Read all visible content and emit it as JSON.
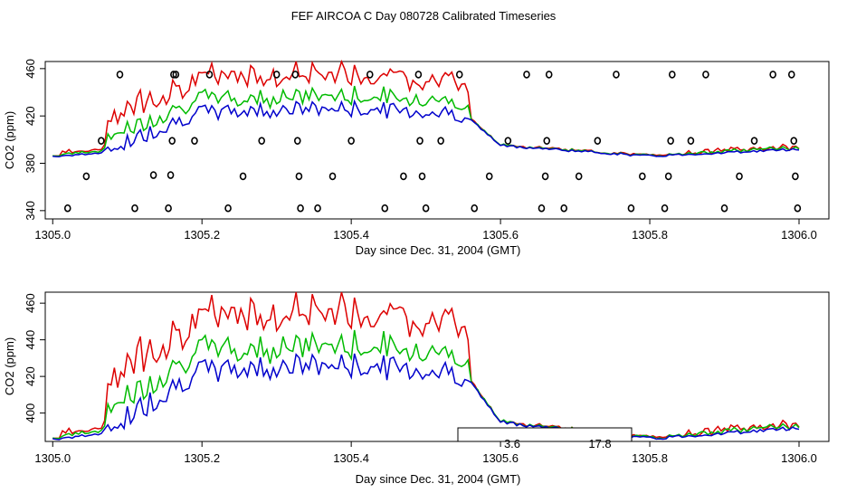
{
  "figure_title": "FEF AIRCOA C  Day 080728  Calibrated Timeseries",
  "colors": {
    "series_1": "#dd0000",
    "series_2": "#00bb00",
    "series_3": "#0000cc",
    "axes": "#000000"
  },
  "chart_data": [
    {
      "type": "line",
      "name": "top-panel",
      "xlabel": "Day since Dec. 31, 2004 (GMT)",
      "ylabel": "CO2 (ppm)",
      "xlim": [
        1304.99,
        1306.04
      ],
      "ylim": [
        333,
        466
      ],
      "xticks": [
        "1305.0",
        "1305.2",
        "1305.4",
        "1305.6",
        "1305.8",
        "1306.0"
      ],
      "yticks": [
        "340",
        "380",
        "420",
        "460"
      ],
      "ytick_values": [
        340,
        380,
        420,
        460
      ],
      "xtick_values": [
        1305.0,
        1305.2,
        1305.4,
        1305.6,
        1305.8,
        1306.0
      ],
      "series": [
        {
          "name": "red",
          "color": "#dd0000"
        },
        {
          "name": "green",
          "color": "#00bb00"
        },
        {
          "name": "blue",
          "color": "#0000cc"
        }
      ],
      "calibration_points": {
        "x": [
          1305.02,
          1305.045,
          1305.065,
          1305.09,
          1305.11,
          1305.135,
          1305.155,
          1305.158,
          1305.16,
          1305.162,
          1305.165,
          1305.19,
          1305.21,
          1305.235,
          1305.255,
          1305.28,
          1305.3,
          1305.325,
          1305.328,
          1305.33,
          1305.332,
          1305.355,
          1305.375,
          1305.4,
          1305.425,
          1305.445,
          1305.47,
          1305.49,
          1305.492,
          1305.495,
          1305.5,
          1305.52,
          1305.545,
          1305.565,
          1305.585,
          1305.61,
          1305.635,
          1305.655,
          1305.66,
          1305.662,
          1305.665,
          1305.685,
          1305.705,
          1305.73,
          1305.755,
          1305.775,
          1305.79,
          1305.82,
          1305.825,
          1305.828,
          1305.83,
          1305.855,
          1305.875,
          1305.9,
          1305.92,
          1305.94,
          1305.965,
          1305.99,
          1305.993,
          1305.995,
          1305.998
        ],
        "y": [
          342,
          369,
          399,
          455,
          342,
          370,
          342,
          370,
          399,
          455,
          455,
          399,
          455,
          342,
          369,
          399,
          455,
          455,
          399,
          369,
          342,
          342,
          369,
          399,
          455,
          342,
          369,
          455,
          399,
          369,
          342,
          399,
          455,
          342,
          369,
          399,
          455,
          342,
          369,
          399,
          455,
          342,
          369,
          399,
          455,
          342,
          369,
          342,
          369,
          399,
          455,
          399,
          455,
          342,
          369,
          399,
          455,
          455,
          399,
          369,
          342
        ]
      }
    },
    {
      "type": "line",
      "name": "bottom-panel",
      "xlabel": "Day since Dec. 31, 2004 (GMT)",
      "ylabel": "CO2 (ppm)",
      "xlim": [
        1304.99,
        1306.04
      ],
      "ylim": [
        384.5,
        466
      ],
      "xticks": [
        "1305.0",
        "1305.2",
        "1305.4",
        "1305.6",
        "1305.8",
        "1306.0"
      ],
      "yticks": [
        "400",
        "420",
        "440",
        "460"
      ],
      "ytick_values": [
        400,
        420,
        440,
        460
      ],
      "xtick_values": [
        1305.0,
        1305.2,
        1305.4,
        1305.6,
        1305.8,
        1306.0
      ],
      "series": [
        {
          "name": "red",
          "color": "#dd0000"
        },
        {
          "name": "green",
          "color": "#00bb00"
        },
        {
          "name": "blue",
          "color": "#0000cc"
        }
      ],
      "legend_box": {
        "labels": [
          "3.6",
          "17.8"
        ]
      }
    }
  ]
}
